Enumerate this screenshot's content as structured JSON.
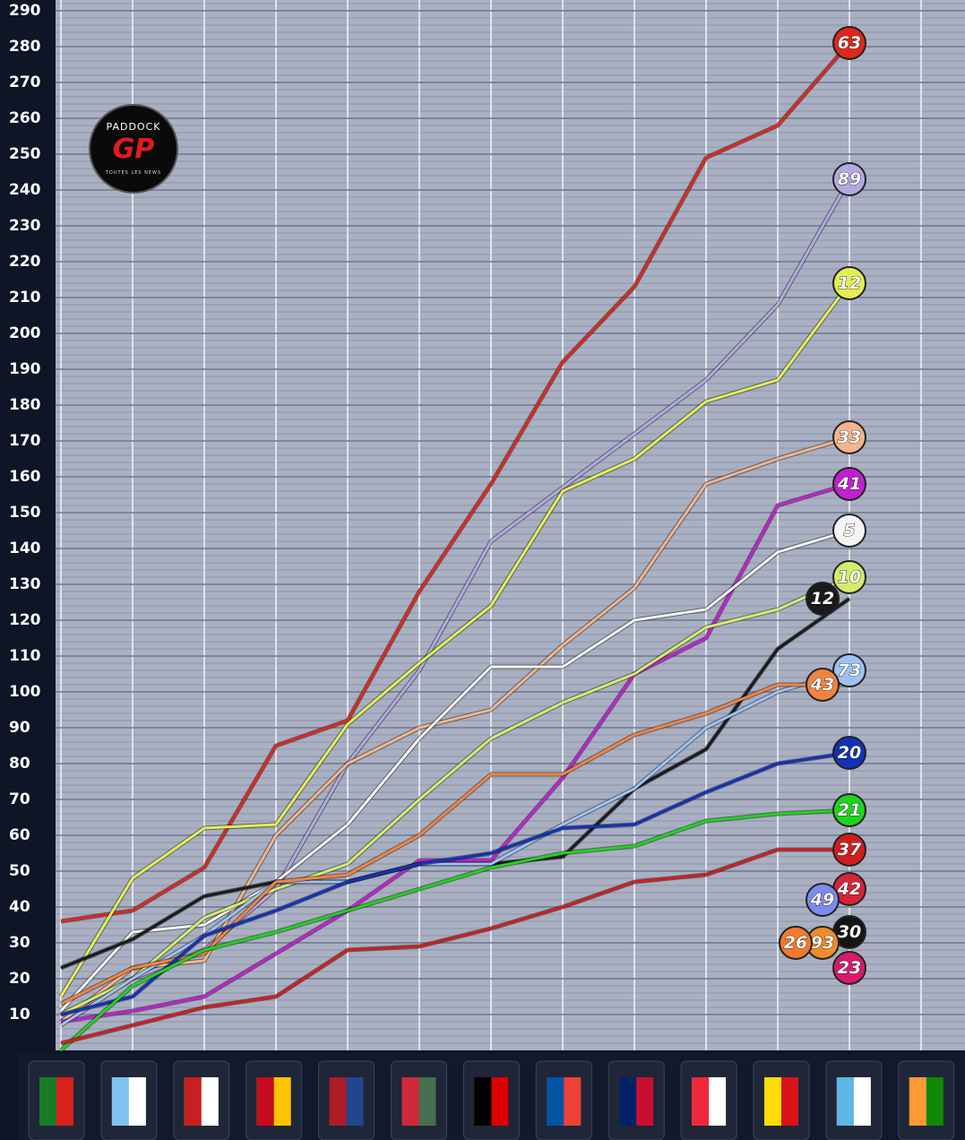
{
  "logo": {
    "top": "PADDOCK",
    "main": "GP",
    "bottom": "TOUTES LES NEWS"
  },
  "chart_data": {
    "type": "line",
    "categories": [
      null,
      null,
      null,
      null,
      null,
      null,
      null,
      null,
      null,
      null,
      null,
      null,
      null
    ],
    "ylim": [
      0,
      290
    ],
    "yticks": [
      10,
      20,
      30,
      40,
      50,
      60,
      70,
      80,
      90,
      100,
      110,
      120,
      130,
      140,
      150,
      160,
      170,
      180,
      190,
      200,
      210,
      220,
      230,
      240,
      250,
      260,
      270,
      280,
      290
    ],
    "grid": true,
    "series": [
      {
        "name": "63",
        "color": "#e0261b",
        "values": [
          36,
          39,
          51,
          85,
          92,
          128,
          158,
          192,
          213,
          249,
          258,
          281,
          null
        ]
      },
      {
        "name": "89",
        "color": "#b3a9e0",
        "values": [
          8,
          20,
          28,
          45,
          80,
          106,
          142,
          157,
          172,
          187,
          208,
          243,
          null
        ]
      },
      {
        "name": "12",
        "color": "#e3ee54",
        "values": [
          15,
          48,
          62,
          63,
          91,
          108,
          124,
          156,
          165,
          181,
          187,
          214,
          null
        ]
      },
      {
        "name": "33",
        "color": "#f3b48c",
        "values": [
          8,
          23,
          25,
          60,
          80,
          90,
          95,
          113,
          129,
          158,
          165,
          171,
          null
        ]
      },
      {
        "name": "41",
        "color": "#c21fd1",
        "values": [
          8,
          11,
          15,
          27,
          39,
          53,
          53,
          76,
          105,
          115,
          152,
          158,
          null
        ]
      },
      {
        "name": "5",
        "color": "#f4f4f4",
        "values": [
          11,
          33,
          35,
          47,
          63,
          87,
          107,
          107,
          120,
          123,
          139,
          145,
          null
        ]
      },
      {
        "name": "10",
        "color": "#d4ec6a",
        "values": [
          10,
          20,
          37,
          45,
          52,
          70,
          87,
          97,
          105,
          118,
          123,
          132,
          null
        ]
      },
      {
        "name": "12",
        "color": "#1a1a1a",
        "values": [
          23,
          31,
          43,
          47,
          47,
          52,
          52,
          54,
          73,
          84,
          112,
          126,
          null
        ]
      },
      {
        "name": "73",
        "color": "#9cc2f2",
        "values": [
          7,
          20,
          32,
          47,
          47,
          52,
          52,
          63,
          73,
          90,
          100,
          106,
          null
        ]
      },
      {
        "name": "43",
        "color": "#f2833e",
        "values": [
          13,
          23,
          27,
          47,
          49,
          60,
          77,
          77,
          88,
          94,
          102,
          102,
          null
        ]
      },
      {
        "name": "20",
        "color": "#1231b8",
        "values": [
          10,
          15,
          32,
          39,
          47,
          52,
          55,
          62,
          63,
          72,
          80,
          83,
          null
        ]
      },
      {
        "name": "21",
        "color": "#1fd41c",
        "values": [
          0,
          18,
          28,
          33,
          39,
          45,
          51,
          55,
          57,
          64,
          66,
          67,
          null
        ]
      },
      {
        "name": "37",
        "color": "#d31c1c",
        "values": [
          2,
          7,
          12,
          15,
          28,
          29,
          34,
          40,
          47,
          49,
          56,
          56,
          null
        ]
      },
      {
        "name": "42",
        "color": "#d8233a",
        "values": [
          null,
          null,
          null,
          null,
          null,
          null,
          null,
          null,
          null,
          null,
          null,
          45,
          null
        ]
      },
      {
        "name": "49",
        "color": "#7d8bf0",
        "values": [
          null,
          null,
          null,
          null,
          null,
          null,
          null,
          null,
          null,
          null,
          null,
          42,
          null
        ]
      },
      {
        "name": "30",
        "color": "#151515",
        "values": [
          null,
          null,
          null,
          null,
          null,
          null,
          null,
          null,
          null,
          null,
          null,
          33,
          null
        ]
      },
      {
        "name": "93",
        "color": "#f28a2a",
        "values": [
          null,
          null,
          null,
          null,
          null,
          null,
          null,
          null,
          null,
          null,
          null,
          30,
          null
        ]
      },
      {
        "name": "26",
        "color": "#f27a2a",
        "values": [
          null,
          null,
          null,
          null,
          null,
          null,
          null,
          null,
          null,
          null,
          null,
          30,
          null
        ]
      },
      {
        "name": "23",
        "color": "#d91a6c",
        "values": [
          null,
          null,
          null,
          null,
          null,
          null,
          null,
          null,
          null,
          null,
          null,
          23,
          null
        ]
      }
    ]
  }
}
